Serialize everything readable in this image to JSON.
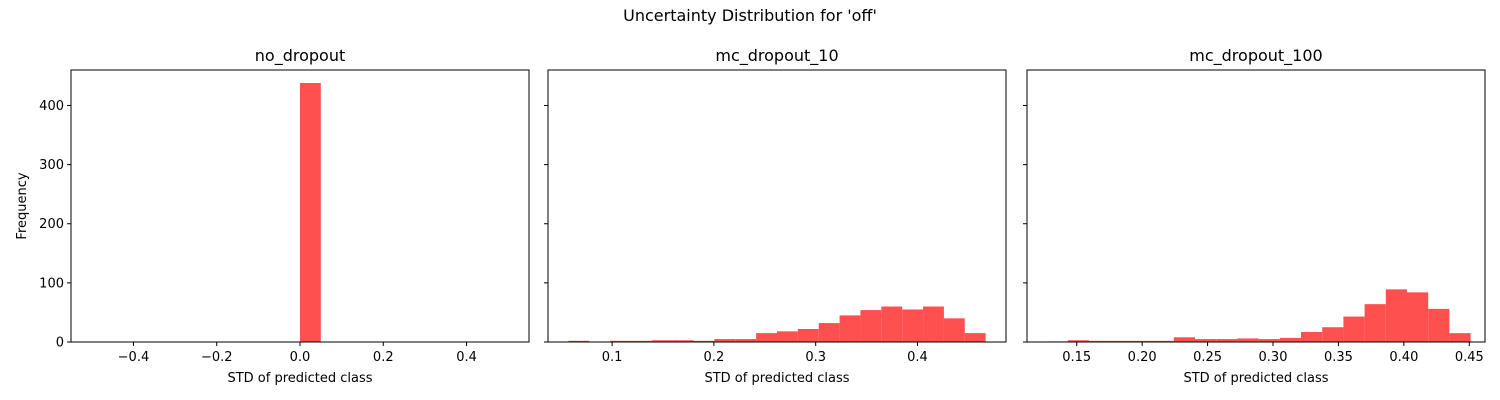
{
  "figure": {
    "title": "Uncertainty Distribution for 'off'",
    "bar_color": "#ff5050"
  },
  "chart_data": [
    {
      "type": "bar",
      "title": "no_dropout",
      "xlabel": "STD of predicted class",
      "ylabel": "Frequency",
      "xlim": [
        -0.55,
        0.55
      ],
      "ylim": [
        0,
        460
      ],
      "xticks": [
        -0.4,
        -0.2,
        0.0,
        0.2,
        0.4
      ],
      "xtick_labels": [
        "−0.4",
        "−0.2",
        "0.0",
        "0.2",
        "0.4"
      ],
      "yticks": [
        0,
        100,
        200,
        300,
        400
      ],
      "ytick_labels": [
        "0",
        "100",
        "200",
        "300",
        "400"
      ],
      "bins": [
        [
          0.0,
          0.05,
          438
        ]
      ],
      "grid": false,
      "legend": "none"
    },
    {
      "type": "bar",
      "title": "mc_dropout_10",
      "xlabel": "STD of predicted class",
      "ylabel": "",
      "xlim": [
        0.037,
        0.487
      ],
      "ylim": [
        0,
        460
      ],
      "xticks": [
        0.1,
        0.2,
        0.3,
        0.4
      ],
      "xtick_labels": [
        "0.1",
        "0.2",
        "0.3",
        "0.4"
      ],
      "yticks": [
        0,
        100,
        200,
        300,
        400
      ],
      "ytick_labels": [
        "",
        "",
        "",
        "",
        ""
      ],
      "bins": [
        [
          0.057,
          0.0775,
          2
        ],
        [
          0.0775,
          0.098,
          0
        ],
        [
          0.098,
          0.1185,
          2
        ],
        [
          0.1185,
          0.139,
          2
        ],
        [
          0.139,
          0.1595,
          3
        ],
        [
          0.1595,
          0.18,
          3
        ],
        [
          0.18,
          0.2005,
          2
        ],
        [
          0.2005,
          0.221,
          5
        ],
        [
          0.221,
          0.2415,
          5
        ],
        [
          0.2415,
          0.262,
          15
        ],
        [
          0.262,
          0.2825,
          18
        ],
        [
          0.2825,
          0.303,
          22
        ],
        [
          0.303,
          0.3235,
          32
        ],
        [
          0.3235,
          0.344,
          45
        ],
        [
          0.344,
          0.3645,
          54
        ],
        [
          0.3645,
          0.385,
          60
        ],
        [
          0.385,
          0.4055,
          55
        ],
        [
          0.4055,
          0.426,
          60
        ],
        [
          0.426,
          0.4465,
          40
        ],
        [
          0.4465,
          0.467,
          15
        ]
      ],
      "grid": false,
      "legend": "none"
    },
    {
      "type": "bar",
      "title": "mc_dropout_100",
      "xlabel": "STD of predicted class",
      "ylabel": "",
      "xlim": [
        0.112,
        0.462
      ],
      "ylim": [
        0,
        460
      ],
      "xticks": [
        0.15,
        0.2,
        0.25,
        0.3,
        0.35,
        0.4,
        0.45
      ],
      "xtick_labels": [
        "0.15",
        "0.20",
        "0.25",
        "0.30",
        "0.35",
        "0.40",
        "0.45"
      ],
      "yticks": [
        0,
        100,
        200,
        300,
        400
      ],
      "ytick_labels": [
        "",
        "",
        "",
        "",
        ""
      ],
      "bins": [
        [
          0.127,
          0.1432,
          1
        ],
        [
          0.1432,
          0.1594,
          3
        ],
        [
          0.1594,
          0.1756,
          2
        ],
        [
          0.1756,
          0.1918,
          2
        ],
        [
          0.1918,
          0.208,
          2
        ],
        [
          0.208,
          0.2242,
          2
        ],
        [
          0.2242,
          0.2404,
          8
        ],
        [
          0.2404,
          0.2566,
          5
        ],
        [
          0.2566,
          0.2728,
          5
        ],
        [
          0.2728,
          0.289,
          6
        ],
        [
          0.289,
          0.3052,
          5
        ],
        [
          0.3052,
          0.3214,
          7
        ],
        [
          0.3214,
          0.3376,
          17
        ],
        [
          0.3376,
          0.3538,
          25
        ],
        [
          0.3538,
          0.37,
          43
        ],
        [
          0.37,
          0.3862,
          64
        ],
        [
          0.3862,
          0.4024,
          89
        ],
        [
          0.4024,
          0.4186,
          84
        ],
        [
          0.4186,
          0.4348,
          56
        ],
        [
          0.4348,
          0.451,
          15
        ]
      ],
      "grid": false,
      "legend": "none"
    }
  ]
}
